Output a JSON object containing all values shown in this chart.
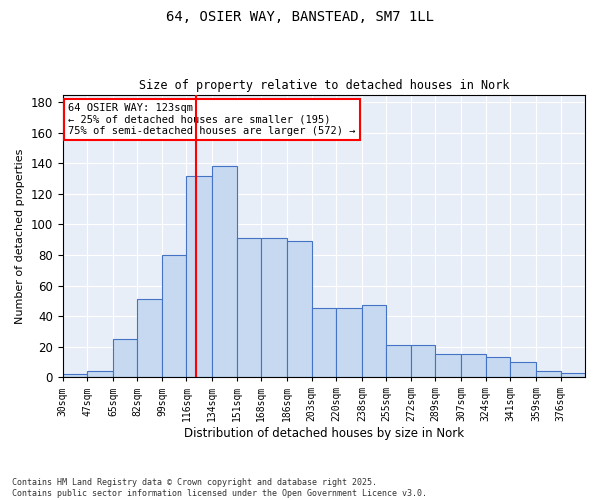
{
  "title_line1": "64, OSIER WAY, BANSTEAD, SM7 1LL",
  "title_line2": "Size of property relative to detached houses in Nork",
  "xlabel": "Distribution of detached houses by size in Nork",
  "ylabel": "Number of detached properties",
  "bin_labels": [
    "30sqm",
    "47sqm",
    "65sqm",
    "82sqm",
    "99sqm",
    "116sqm",
    "134sqm",
    "151sqm",
    "168sqm",
    "186sqm",
    "203sqm",
    "220sqm",
    "238sqm",
    "255sqm",
    "272sqm",
    "289sqm",
    "307sqm",
    "324sqm",
    "341sqm",
    "359sqm",
    "376sqm"
  ],
  "bar_heights": [
    2,
    4,
    25,
    51,
    80,
    132,
    138,
    91,
    91,
    89,
    45,
    45,
    47,
    21,
    21,
    15,
    15,
    13,
    10,
    4,
    3
  ],
  "bar_color": "#c6d9f0",
  "bar_edge_color": "#4472c4",
  "vline_x": 123,
  "vline_color": "red",
  "annotation_text": "64 OSIER WAY: 123sqm\n← 25% of detached houses are smaller (195)\n75% of semi-detached houses are larger (572) →",
  "annotation_box_edge": "red",
  "annotation_box_face": "white",
  "ylim": [
    0,
    185
  ],
  "yticks": [
    0,
    20,
    40,
    60,
    80,
    100,
    120,
    140,
    160,
    180
  ],
  "background_color": "#e8eef8",
  "footnote": "Contains HM Land Registry data © Crown copyright and database right 2025.\nContains public sector information licensed under the Open Government Licence v3.0.",
  "bin_edges": [
    30,
    47,
    65,
    82,
    99,
    116,
    134,
    151,
    168,
    186,
    203,
    220,
    238,
    255,
    272,
    289,
    307,
    324,
    341,
    359,
    376,
    393
  ]
}
